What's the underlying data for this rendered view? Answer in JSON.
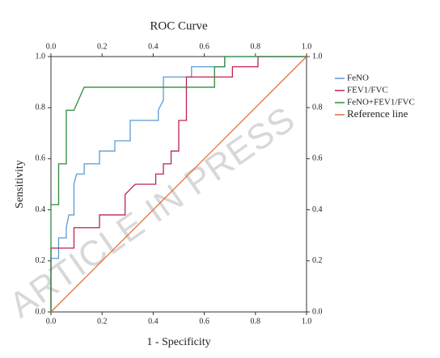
{
  "chart_data": {
    "type": "line",
    "title": "ROC Curve",
    "xlabel": "1 - Specificity",
    "ylabel": "Sensitivity",
    "watermark": "ARTICLE IN PRESS",
    "xlim": [
      0,
      1
    ],
    "ylim": [
      0,
      1
    ],
    "xticks": [
      {
        "value": 0,
        "label": "0.0"
      },
      0.2,
      0.4,
      0.6,
      0.8,
      {
        "value": 1,
        "label": "1.0"
      }
    ],
    "yticks": [
      {
        "value": 0,
        "label": "0.0"
      },
      0.2,
      0.4,
      0.6,
      0.8,
      {
        "value": 1,
        "label": "1.0"
      }
    ],
    "legend": "right",
    "grid": false,
    "series": [
      {
        "name": "FeNO",
        "color": "#5b9bd5",
        "x": [
          0,
          0,
          0.03,
          0.03,
          0.06,
          0.06,
          0.07,
          0.09,
          0.09,
          0.1,
          0.13,
          0.13,
          0.19,
          0.19,
          0.25,
          0.25,
          0.31,
          0.31,
          0.42,
          0.42,
          0.44,
          0.44,
          0.55,
          0.55,
          0.68,
          0.68,
          1
        ],
        "values": [
          0,
          0.21,
          0.21,
          0.29,
          0.29,
          0.33,
          0.38,
          0.38,
          0.5,
          0.54,
          0.54,
          0.58,
          0.58,
          0.63,
          0.63,
          0.67,
          0.67,
          0.75,
          0.75,
          0.79,
          0.83,
          0.92,
          0.92,
          0.96,
          0.96,
          1,
          1
        ]
      },
      {
        "name": "FEV1/FVC",
        "color": "#c0234b",
        "x": [
          0,
          0,
          0.09,
          0.09,
          0.19,
          0.19,
          0.29,
          0.29,
          0.33,
          0.41,
          0.41,
          0.44,
          0.44,
          0.47,
          0.47,
          0.5,
          0.5,
          0.53,
          0.53,
          0.71,
          0.71,
          0.81,
          0.81,
          1
        ],
        "values": [
          0,
          0.25,
          0.25,
          0.33,
          0.33,
          0.38,
          0.38,
          0.46,
          0.5,
          0.5,
          0.54,
          0.54,
          0.58,
          0.58,
          0.63,
          0.63,
          0.75,
          0.75,
          0.92,
          0.92,
          0.96,
          0.96,
          1,
          1
        ]
      },
      {
        "name": "FeNO+FEV1/FVC",
        "color": "#2e8b3e",
        "x": [
          0,
          0,
          0.03,
          0.03,
          0.06,
          0.06,
          0.09,
          0.13,
          0.64,
          0.64,
          0.68,
          0.68,
          1
        ],
        "values": [
          0,
          0.42,
          0.42,
          0.58,
          0.58,
          0.79,
          0.79,
          0.88,
          0.88,
          0.96,
          0.96,
          1,
          1
        ]
      },
      {
        "name": "Reference line",
        "color": "#e07040",
        "x": [
          0,
          1
        ],
        "values": [
          0,
          1
        ]
      }
    ]
  }
}
